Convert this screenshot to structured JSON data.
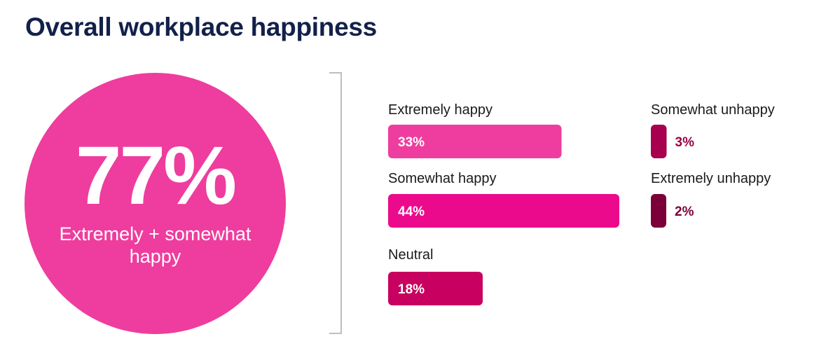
{
  "title": "Overall workplace happiness",
  "summary": {
    "value": "77%",
    "label": "Extremely + somewhat happy",
    "color": "#ee3d9e"
  },
  "chart_data": {
    "type": "bar",
    "title": "Overall workplace happiness",
    "unit": "%",
    "categories": [
      "Extremely happy",
      "Somewhat happy",
      "Neutral",
      "Somewhat unhappy",
      "Extremely unhappy"
    ],
    "values": [
      33,
      44,
      18,
      3,
      2
    ],
    "value_labels": [
      "33%",
      "44%",
      "18%",
      "3%",
      "2%"
    ],
    "colors": [
      "#ee3d9e",
      "#ec0a8c",
      "#c8005f",
      "#a6004e",
      "#7b0039"
    ],
    "label_colors": [
      "#ffffff",
      "#ffffff",
      "#ffffff",
      "#9b0046",
      "#7b0039"
    ],
    "columns": [
      [
        "Extremely happy",
        "Somewhat happy",
        "Neutral"
      ],
      [
        "Somewhat unhappy",
        "Extremely unhappy"
      ]
    ]
  }
}
